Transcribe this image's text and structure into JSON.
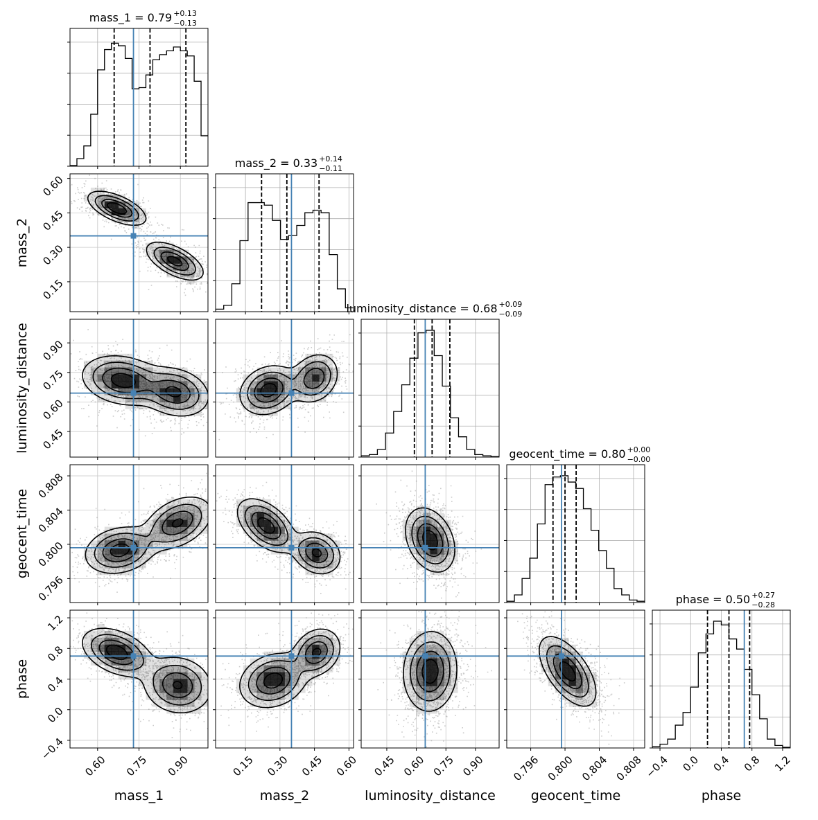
{
  "chart_data": {
    "type": "corner",
    "truth_color": "#4682b4",
    "grid": true,
    "params": [
      {
        "name": "mass_1",
        "label": "mass_1",
        "range": [
          0.5,
          1.0
        ],
        "ticks": [
          0.6,
          0.75,
          0.9
        ],
        "tick_labels": [
          "0.60",
          "0.75",
          "0.90"
        ],
        "truth": 0.73,
        "title": {
          "prefix": "mass_1 = 0.79",
          "up": "+0.13",
          "down": "−0.13"
        },
        "quantiles": [
          0.66,
          0.79,
          0.92
        ]
      },
      {
        "name": "mass_2",
        "label": "mass_2",
        "range": [
          0.02,
          0.62
        ],
        "ticks": [
          0.15,
          0.3,
          0.45,
          0.6
        ],
        "tick_labels": [
          "0.15",
          "0.30",
          "0.45",
          "0.60"
        ],
        "truth": 0.35,
        "title": {
          "prefix": "mass_2 = 0.33",
          "up": "+0.14",
          "down": "−0.11"
        },
        "quantiles": [
          0.22,
          0.33,
          0.47
        ]
      },
      {
        "name": "luminosity_distance",
        "label": "luminosity_distance",
        "range": [
          0.32,
          1.02
        ],
        "ticks": [
          0.45,
          0.6,
          0.75,
          0.9
        ],
        "tick_labels": [
          "0.45",
          "0.60",
          "0.75",
          "0.90"
        ],
        "truth": 0.645,
        "title": {
          "prefix": "luminosity_distance = 0.68",
          "up": "+0.09",
          "down": "−0.09"
        },
        "quantiles": [
          0.59,
          0.68,
          0.77
        ]
      },
      {
        "name": "geocent_time",
        "label": "geocent_time",
        "range": [
          0.7932,
          0.8093
        ],
        "ticks": [
          0.796,
          0.8,
          0.804,
          0.808
        ],
        "tick_labels": [
          "0.796",
          "0.800",
          "0.804",
          "0.808"
        ],
        "truth": 0.7996,
        "title": {
          "prefix": "geocent_time = 0.80",
          "up": "+0.00",
          "down": "−0.00"
        },
        "quantiles": [
          0.7986,
          0.8,
          0.8013
        ]
      },
      {
        "name": "phase",
        "label": "phase",
        "range": [
          -0.5,
          1.3
        ],
        "ticks": [
          -0.4,
          0.0,
          0.4,
          0.8,
          1.2
        ],
        "tick_labels": [
          "−0.4",
          "0.0",
          "0.4",
          "0.8",
          "1.2"
        ],
        "truth": 0.7,
        "title": {
          "prefix": "phase = 0.50",
          "up": "+0.27",
          "down": "−0.28"
        },
        "quantiles": [
          0.22,
          0.5,
          0.77
        ]
      }
    ],
    "marginals": {
      "mass_1": [
        0.005,
        0.06,
        0.16,
        0.41,
        0.76,
        0.92,
        0.97,
        0.95,
        0.85,
        0.61,
        0.62,
        0.72,
        0.84,
        0.88,
        0.91,
        0.94,
        0.91,
        0.87,
        0.67,
        0.24
      ],
      "mass_2": [
        0.02,
        0.05,
        0.22,
        0.56,
        0.86,
        0.86,
        0.84,
        0.72,
        0.57,
        0.6,
        0.68,
        0.78,
        0.8,
        0.78,
        0.45,
        0.18,
        0.03
      ],
      "luminosity_distance": [
        0.01,
        0.02,
        0.06,
        0.19,
        0.36,
        0.57,
        0.78,
        0.98,
        1.0,
        0.8,
        0.56,
        0.31,
        0.16,
        0.06,
        0.02,
        0.01,
        0.004
      ],
      "geocent_time": [
        0.01,
        0.06,
        0.19,
        0.35,
        0.62,
        0.93,
        0.99,
        1.0,
        0.95,
        0.9,
        0.74,
        0.57,
        0.41,
        0.27,
        0.11,
        0.06,
        0.02,
        0.01
      ],
      "phase": [
        0.01,
        0.03,
        0.07,
        0.18,
        0.28,
        0.48,
        0.75,
        0.9,
        1.0,
        0.97,
        0.86,
        0.78,
        0.62,
        0.42,
        0.23,
        0.07,
        0.02,
        0.005
      ]
    },
    "joints": [
      {
        "x": "mass_1",
        "y": "mass_2",
        "blobs": [
          {
            "mx": 0.67,
            "my": 0.47,
            "sx": 0.05,
            "sy": 0.035,
            "rho": -0.6,
            "w": 1.0
          },
          {
            "mx": 0.88,
            "my": 0.24,
            "sx": 0.05,
            "sy": 0.04,
            "rho": -0.6,
            "w": 0.9
          }
        ]
      },
      {
        "x": "mass_1",
        "y": "luminosity_distance",
        "blobs": [
          {
            "mx": 0.69,
            "my": 0.71,
            "sx": 0.07,
            "sy": 0.06,
            "rho": -0.2,
            "w": 1.0
          },
          {
            "mx": 0.88,
            "my": 0.65,
            "sx": 0.06,
            "sy": 0.06,
            "rho": -0.2,
            "w": 0.9
          }
        ]
      },
      {
        "x": "mass_1",
        "y": "geocent_time",
        "blobs": [
          {
            "mx": 0.68,
            "my": 0.7993,
            "sx": 0.06,
            "sy": 0.0013,
            "rho": 0.2,
            "w": 1.0
          },
          {
            "mx": 0.89,
            "my": 0.8025,
            "sx": 0.06,
            "sy": 0.0015,
            "rho": 0.4,
            "w": 0.9
          }
        ]
      },
      {
        "x": "mass_1",
        "y": "phase",
        "blobs": [
          {
            "mx": 0.67,
            "my": 0.75,
            "sx": 0.06,
            "sy": 0.15,
            "rho": -0.4,
            "w": 1.0
          },
          {
            "mx": 0.89,
            "my": 0.32,
            "sx": 0.06,
            "sy": 0.18,
            "rho": -0.1,
            "w": 0.85
          }
        ]
      },
      {
        "x": "mass_2",
        "y": "luminosity_distance",
        "blobs": [
          {
            "mx": 0.25,
            "my": 0.66,
            "sx": 0.06,
            "sy": 0.06,
            "rho": 0.2,
            "w": 1.0
          },
          {
            "mx": 0.45,
            "my": 0.72,
            "sx": 0.05,
            "sy": 0.06,
            "rho": 0.2,
            "w": 0.85
          }
        ]
      },
      {
        "x": "mass_2",
        "y": "geocent_time",
        "blobs": [
          {
            "mx": 0.24,
            "my": 0.8022,
            "sx": 0.06,
            "sy": 0.0015,
            "rho": -0.5,
            "w": 1.0
          },
          {
            "mx": 0.46,
            "my": 0.799,
            "sx": 0.05,
            "sy": 0.0012,
            "rho": -0.2,
            "w": 0.9
          }
        ]
      },
      {
        "x": "mass_2",
        "y": "phase",
        "blobs": [
          {
            "mx": 0.27,
            "my": 0.38,
            "sx": 0.07,
            "sy": 0.17,
            "rho": 0.2,
            "w": 1.0
          },
          {
            "mx": 0.46,
            "my": 0.75,
            "sx": 0.05,
            "sy": 0.15,
            "rho": 0.2,
            "w": 0.9
          }
        ]
      },
      {
        "x": "luminosity_distance",
        "y": "geocent_time",
        "blobs": [
          {
            "mx": 0.67,
            "my": 0.8005,
            "sx": 0.06,
            "sy": 0.0018,
            "rho": -0.3,
            "w": 1.0
          }
        ]
      },
      {
        "x": "luminosity_distance",
        "y": "phase",
        "blobs": [
          {
            "mx": 0.67,
            "my": 0.5,
            "sx": 0.065,
            "sy": 0.25,
            "rho": 0.05,
            "w": 1.0
          }
        ]
      },
      {
        "x": "geocent_time",
        "y": "phase",
        "blobs": [
          {
            "mx": 0.8003,
            "my": 0.5,
            "sx": 0.0016,
            "sy": 0.22,
            "rho": -0.6,
            "w": 1.0
          }
        ]
      }
    ]
  }
}
